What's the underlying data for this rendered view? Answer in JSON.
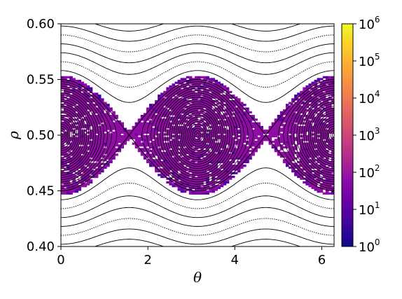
{
  "chart_data": {
    "type": "heatmap",
    "description_free": true,
    "xlabel": "θ",
    "ylabel": "ρ",
    "xlim": [
      0,
      6.2832
    ],
    "ylim": [
      0.4,
      0.6
    ],
    "xticks": [
      0,
      2,
      4,
      6
    ],
    "xtick_labels": [
      "0",
      "2",
      "4",
      "6"
    ],
    "yticks": [
      0.4,
      0.45,
      0.5,
      0.55,
      0.6
    ],
    "ytick_labels": [
      "0.40",
      "0.45",
      "0.50",
      "0.55",
      "0.60"
    ],
    "overlay": {
      "type": "contour",
      "levels_inside": [
        0.002,
        0.004,
        0.006,
        0.008,
        0.01,
        0.012,
        0.014,
        0.016,
        0.018,
        0.02,
        0.022,
        0.024,
        0.026,
        0.028,
        0.03,
        0.032,
        0.034,
        0.036,
        0.038,
        0.04,
        0.042,
        0.044,
        0.046,
        0.048,
        0.05
      ],
      "levels_outside": [
        0.058,
        0.066,
        0.074,
        0.082,
        0.09,
        0.098,
        0.106,
        0.114,
        0.122,
        0.13,
        0.138,
        0.146,
        0.154
      ],
      "island_half_width": 0.05,
      "island_centers": [
        0,
        3.1416,
        6.2832
      ],
      "color": "#000000"
    },
    "heatmap_region": {
      "rho_min": 0.447,
      "rho_max": 0.553,
      "scale": "log",
      "vmin": 1,
      "vmax": 1000000,
      "typical_range": [
        1,
        1000
      ]
    },
    "colorbar": {
      "scale": "log",
      "colormap": "plasma",
      "ticks": [
        {
          "base": "10",
          "exp": "0",
          "value": 1
        },
        {
          "base": "10",
          "exp": "1",
          "value": 10
        },
        {
          "base": "10",
          "exp": "2",
          "value": 100
        },
        {
          "base": "10",
          "exp": "3",
          "value": 1000
        },
        {
          "base": "10",
          "exp": "4",
          "value": 10000
        },
        {
          "base": "10",
          "exp": "5",
          "value": 100000
        },
        {
          "base": "10",
          "exp": "6",
          "value": 1000000
        }
      ]
    }
  }
}
